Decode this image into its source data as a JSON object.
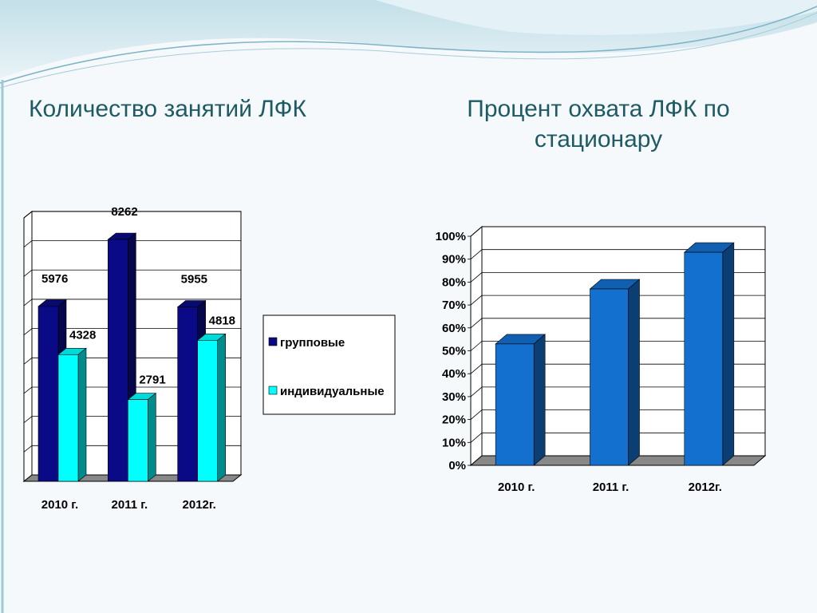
{
  "slide": {
    "left_title": "Количество занятий ЛФК",
    "right_title_line1": "Процент охвата ЛФК по",
    "right_title_line2": "стационару"
  },
  "colors": {
    "title": "#1e5a63",
    "dark_blue_front": "#0a0a86",
    "cyan_front": "#00ffff",
    "blue_front": "#1470cf",
    "floor": "#888888"
  },
  "chart_data": [
    {
      "type": "bar",
      "title": "",
      "categories": [
        "2010 г.",
        "2011 г.",
        "2012г."
      ],
      "series": [
        {
          "name": "групповые",
          "values": [
            5976,
            8262,
            5955
          ],
          "color": "#0a0a86"
        },
        {
          "name": "индивидуальные",
          "values": [
            4328,
            2791,
            4818
          ],
          "color": "#00ffff"
        }
      ],
      "data_labels": [
        [
          "5976",
          "8262",
          "5955"
        ],
        [
          "4328",
          "2791",
          "4818"
        ]
      ],
      "ylim": [
        0,
        9000
      ],
      "grid": true,
      "legend": "right"
    },
    {
      "type": "bar",
      "title": "",
      "categories": [
        "2010 г.",
        "2011 г.",
        "2012г."
      ],
      "values": [
        0.53,
        0.77,
        0.93
      ],
      "ylim": [
        0,
        1
      ],
      "yticks": [
        "0%",
        "10%",
        "20%",
        "30%",
        "40%",
        "50%",
        "60%",
        "70%",
        "80%",
        "90%",
        "100%"
      ],
      "grid": true,
      "legend": "none",
      "color": "#1470cf"
    }
  ]
}
